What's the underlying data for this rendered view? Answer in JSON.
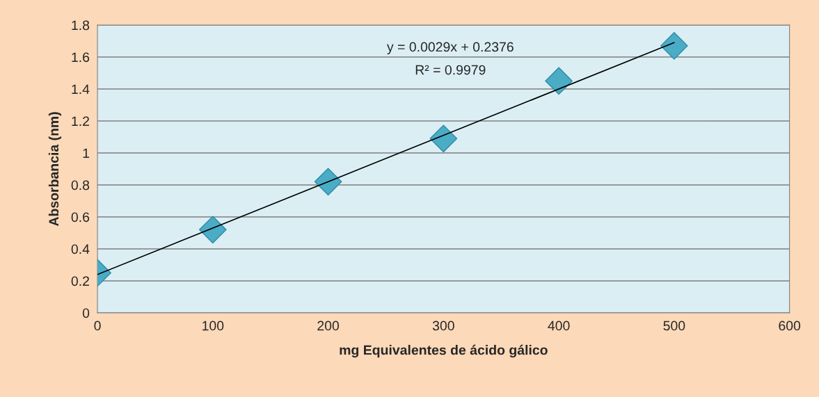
{
  "chart_data": {
    "type": "scatter",
    "xlabel": "mg Equivalentes de ácido gálico",
    "ylabel": "Absorbancia (nm)",
    "series": [
      {
        "color": "#4bacc6",
        "marker": "diamond",
        "x": [
          0,
          100,
          200,
          300,
          400,
          500
        ],
        "values": [
          0.25,
          0.52,
          0.82,
          1.09,
          1.45,
          1.67
        ]
      },
      {
        "type": "line",
        "color": "#000000",
        "marker": "none",
        "line_style": "solid",
        "x": [
          0,
          500
        ],
        "values": [
          0.24,
          1.69
        ]
      }
    ],
    "annotations": [
      "y = 0.0029x + 0.2376",
      "R² = 0.9979"
    ],
    "xlim": [
      0,
      600
    ],
    "xticks": [
      0,
      100,
      200,
      300,
      400,
      500,
      600
    ],
    "ylim": [
      0,
      1.8
    ],
    "yticks": [
      0,
      0.2,
      0.4,
      0.6,
      0.8,
      1,
      1.2,
      1.4,
      1.6,
      1.8
    ],
    "grid": "y",
    "legend": false
  }
}
